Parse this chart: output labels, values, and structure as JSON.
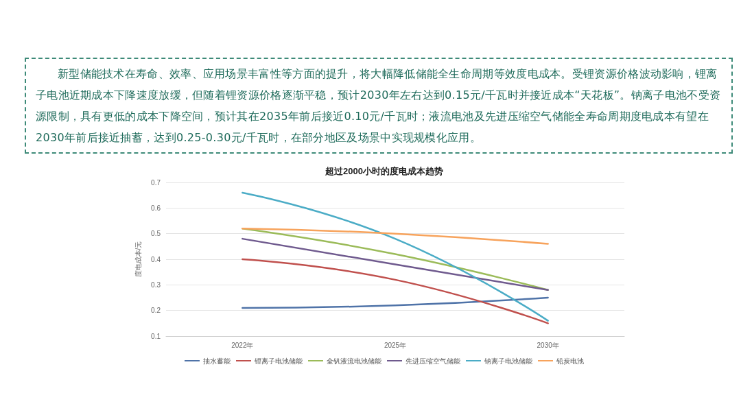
{
  "chart_data": {
    "type": "line",
    "title": "超过2000小时的度电成本趋势",
    "ylabel": "度电成本/元",
    "annotations": [
      "新型储能技术在寿命、效率、应用场景丰富性等方面的提升，将大幅降低储能全生命周期等效度电成本。受锂资源价格波动影响，锂离子电池近期成本下降速度放缓，但随着锂资源价格逐渐平稳，预计2030年左右达到0.15元/千瓦时并接近成本“天花板”。钠离子电池不受资源限制，具有更低的成本下降空间，预计其在2035年前后接近0.10元/千瓦时；液流电池及先进压缩空气储能全寿命周期度电成本有望在2030年前后接近抽蓄，达到0.25-0.30元/千瓦时，在部分地区及场景中实现规模化应用。"
    ],
    "categories": [
      "2022年",
      "2025年",
      "2030年"
    ],
    "series": [
      {
        "name": "抽水蓄能",
        "color": "#4f73a8",
        "values": [
          0.21,
          0.22,
          0.25
        ]
      },
      {
        "name": "锂离子电池储能",
        "color": "#c0504d",
        "values": [
          0.4,
          0.32,
          0.15
        ]
      },
      {
        "name": "全钒液流电池储能",
        "color": "#9bbb59",
        "values": [
          0.52,
          0.42,
          0.28
        ]
      },
      {
        "name": "先进压缩空气储能",
        "color": "#6f5a8e",
        "values": [
          0.48,
          0.38,
          0.28
        ]
      },
      {
        "name": "钠离子电池储能",
        "color": "#4bacc6",
        "values": [
          0.66,
          0.48,
          0.16
        ]
      },
      {
        "name": "铅炭电池",
        "color": "#f7a35c",
        "values": [
          0.52,
          0.5,
          0.46
        ]
      }
    ],
    "ylim": [
      0.1,
      0.7
    ],
    "yticks": [
      0.1,
      0.2,
      0.3,
      0.4,
      0.5,
      0.6,
      0.7
    ],
    "grid": "y",
    "legend": "bottom",
    "marker": "none",
    "line_style": "solid"
  }
}
